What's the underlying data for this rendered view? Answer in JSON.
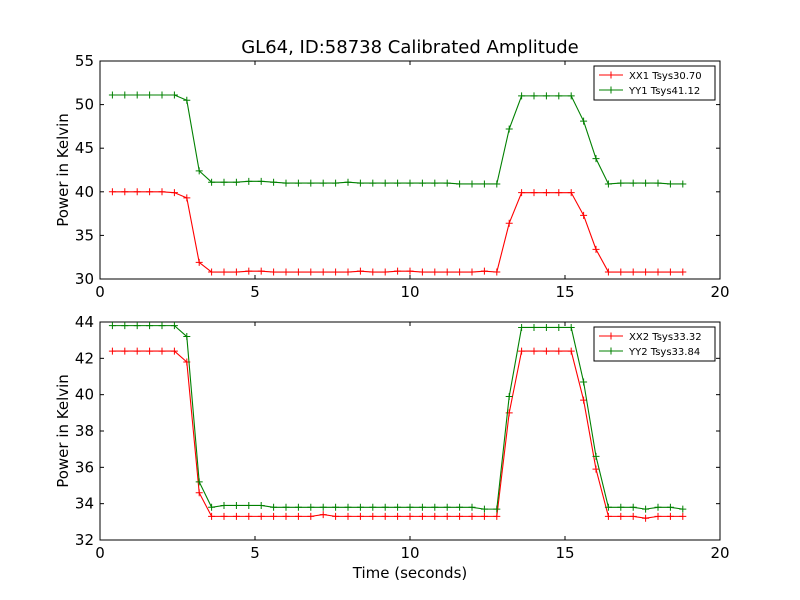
{
  "chart_data": [
    {
      "type": "line",
      "title": "GL64, ID:58738 Calibrated Amplitude",
      "xlabel": "",
      "ylabel": "Power in Kelvin",
      "xlim": [
        0,
        20
      ],
      "ylim": [
        30,
        55
      ],
      "xticks": [
        0,
        5,
        10,
        15,
        20
      ],
      "yticks": [
        30,
        35,
        40,
        45,
        50,
        55
      ],
      "xtick_labels": [
        "0",
        "5",
        "10",
        "15",
        "20"
      ],
      "ytick_labels": [
        "30",
        "35",
        "40",
        "45",
        "50",
        "55"
      ],
      "grid": false,
      "legend_position": "top-right",
      "marker": "plus",
      "x": [
        0.4,
        0.8,
        1.2,
        1.6,
        2.0,
        2.4,
        2.8,
        3.2,
        3.6,
        4.0,
        4.4,
        4.8,
        5.2,
        5.6,
        6.0,
        6.4,
        6.8,
        7.2,
        7.6,
        8.0,
        8.4,
        8.8,
        9.2,
        9.6,
        10.0,
        10.4,
        10.8,
        11.2,
        11.6,
        12.0,
        12.4,
        12.8,
        13.2,
        13.6,
        14.0,
        14.4,
        14.8,
        15.2,
        15.6,
        16.0,
        16.4,
        16.8,
        17.2,
        17.6,
        18.0,
        18.4,
        18.8
      ],
      "series": [
        {
          "name": "XX1 Tsys30.70",
          "color": "#ff0000",
          "values": [
            40.0,
            40.0,
            40.0,
            40.0,
            40.0,
            39.9,
            39.3,
            31.9,
            30.8,
            30.8,
            30.8,
            30.9,
            30.9,
            30.8,
            30.8,
            30.8,
            30.8,
            30.8,
            30.8,
            30.8,
            30.9,
            30.8,
            30.8,
            30.9,
            30.9,
            30.8,
            30.8,
            30.8,
            30.8,
            30.8,
            30.9,
            30.8,
            36.4,
            39.9,
            39.9,
            39.9,
            39.9,
            39.9,
            37.3,
            33.4,
            30.8,
            30.8,
            30.8,
            30.8,
            30.8,
            30.8,
            30.8
          ]
        },
        {
          "name": "YY1 Tsys41.12",
          "color": "#008000",
          "values": [
            51.1,
            51.1,
            51.1,
            51.1,
            51.1,
            51.1,
            50.5,
            42.4,
            41.1,
            41.1,
            41.1,
            41.2,
            41.2,
            41.1,
            41.0,
            41.0,
            41.0,
            41.0,
            41.0,
            41.1,
            41.0,
            41.0,
            41.0,
            41.0,
            41.0,
            41.0,
            41.0,
            41.0,
            40.9,
            40.9,
            40.9,
            40.9,
            47.2,
            51.0,
            51.0,
            51.0,
            51.0,
            51.0,
            48.1,
            43.8,
            40.9,
            41.0,
            41.0,
            41.0,
            41.0,
            40.9,
            40.9
          ]
        }
      ]
    },
    {
      "type": "line",
      "title": "",
      "xlabel": "Time (seconds)",
      "ylabel": "Power in Kelvin",
      "xlim": [
        0,
        20
      ],
      "ylim": [
        32,
        44
      ],
      "xticks": [
        0,
        5,
        10,
        15,
        20
      ],
      "yticks": [
        32,
        34,
        36,
        38,
        40,
        42,
        44
      ],
      "xtick_labels": [
        "0",
        "5",
        "10",
        "15",
        "20"
      ],
      "ytick_labels": [
        "32",
        "34",
        "36",
        "38",
        "40",
        "42",
        "44"
      ],
      "grid": false,
      "legend_position": "top-right",
      "marker": "plus",
      "x": [
        0.4,
        0.8,
        1.2,
        1.6,
        2.0,
        2.4,
        2.8,
        3.2,
        3.6,
        4.0,
        4.4,
        4.8,
        5.2,
        5.6,
        6.0,
        6.4,
        6.8,
        7.2,
        7.6,
        8.0,
        8.4,
        8.8,
        9.2,
        9.6,
        10.0,
        10.4,
        10.8,
        11.2,
        11.6,
        12.0,
        12.4,
        12.8,
        13.2,
        13.6,
        14.0,
        14.4,
        14.8,
        15.2,
        15.6,
        16.0,
        16.4,
        16.8,
        17.2,
        17.6,
        18.0,
        18.4,
        18.8
      ],
      "series": [
        {
          "name": "XX2 Tsys33.32",
          "color": "#ff0000",
          "values": [
            42.4,
            42.4,
            42.4,
            42.4,
            42.4,
            42.4,
            41.8,
            34.6,
            33.3,
            33.3,
            33.3,
            33.3,
            33.3,
            33.3,
            33.3,
            33.3,
            33.3,
            33.4,
            33.3,
            33.3,
            33.3,
            33.3,
            33.3,
            33.3,
            33.3,
            33.3,
            33.3,
            33.3,
            33.3,
            33.3,
            33.3,
            33.3,
            39.0,
            42.4,
            42.4,
            42.4,
            42.4,
            42.4,
            39.7,
            35.9,
            33.3,
            33.3,
            33.3,
            33.2,
            33.3,
            33.3,
            33.3
          ]
        },
        {
          "name": "YY2 Tsys33.84",
          "color": "#008000",
          "values": [
            43.8,
            43.8,
            43.8,
            43.8,
            43.8,
            43.8,
            43.2,
            35.2,
            33.8,
            33.9,
            33.9,
            33.9,
            33.9,
            33.8,
            33.8,
            33.8,
            33.8,
            33.8,
            33.8,
            33.8,
            33.8,
            33.8,
            33.8,
            33.8,
            33.8,
            33.8,
            33.8,
            33.8,
            33.8,
            33.8,
            33.7,
            33.7,
            39.9,
            43.7,
            43.7,
            43.7,
            43.7,
            43.7,
            40.7,
            36.6,
            33.8,
            33.8,
            33.8,
            33.7,
            33.8,
            33.8,
            33.7
          ]
        }
      ]
    }
  ]
}
